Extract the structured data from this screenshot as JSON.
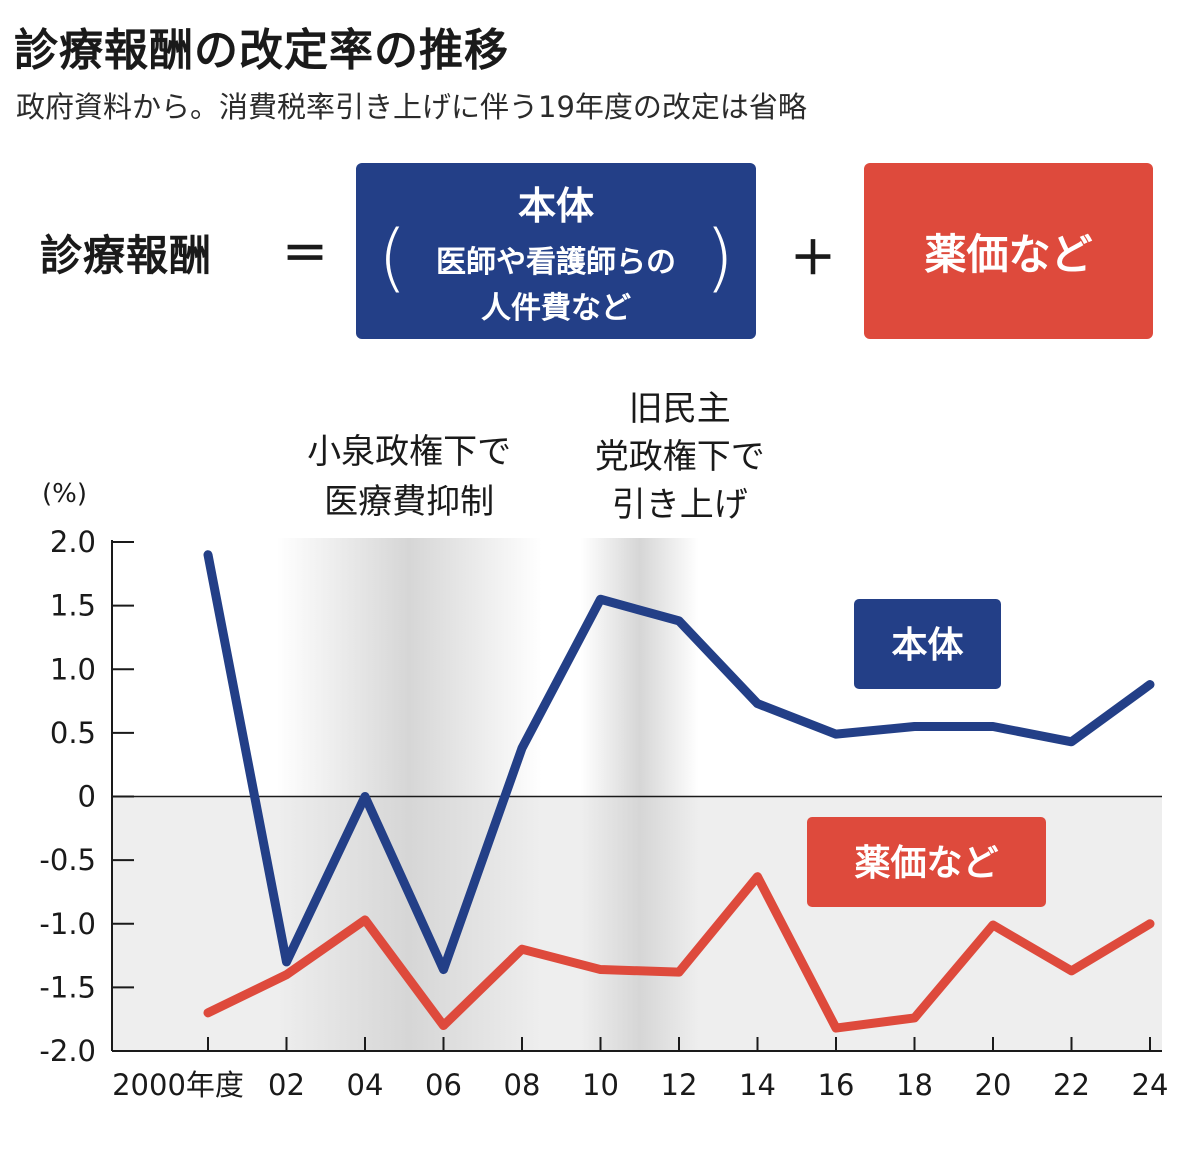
{
  "header": {
    "title": "診療報酬の改定率の推移",
    "subtitle": "政府資料から。消費税率引き上げに伴う19年度の改定は省略"
  },
  "formula": {
    "lhs": "診療報酬",
    "equals": "＝",
    "plus": "＋",
    "main_box": {
      "head": "本体",
      "line1": "医師や看護師らの",
      "line2": "人件費など",
      "paren_open": "(",
      "paren_close": ")"
    },
    "drug_box": "薬価など"
  },
  "colors": {
    "main": "#233f87",
    "drug": "#de4a3c",
    "negative_band": "#eeeeee",
    "period_shade": "#d6d6d6"
  },
  "chart_data": {
    "type": "line",
    "ylabel": "(%)",
    "ylim": [
      -2.0,
      2.0
    ],
    "x_tick_labels": [
      "2000年度",
      "02",
      "04",
      "06",
      "08",
      "10",
      "12",
      "14",
      "16",
      "18",
      "20",
      "22",
      "24"
    ],
    "y_tick_labels": [
      "2.0",
      "1.5",
      "1.0",
      "0.5",
      "0",
      "-0.5",
      "-1.0",
      "-1.5",
      "-2.0"
    ],
    "y_ticks": [
      2.0,
      1.5,
      1.0,
      0.5,
      0,
      -0.5,
      -1.0,
      -1.5,
      -2.0
    ],
    "x": [
      2000,
      2002,
      2004,
      2006,
      2008,
      2010,
      2012,
      2014,
      2016,
      2018,
      2020,
      2022,
      2024
    ],
    "series": [
      {
        "name": "本体",
        "values": [
          1.9,
          -1.3,
          0.0,
          -1.36,
          0.38,
          1.55,
          1.38,
          0.73,
          0.49,
          0.55,
          0.55,
          0.43,
          0.88
        ]
      },
      {
        "name": "薬価など",
        "values": [
          -1.7,
          -1.4,
          -0.97,
          -1.8,
          -1.2,
          -1.36,
          -1.38,
          -0.63,
          -1.82,
          -1.74,
          -1.01,
          -1.37,
          -1.0
        ]
      }
    ],
    "annotations": [
      {
        "lines": [
          "小泉政権下で",
          "医療費抑制"
        ],
        "x_range": [
          2001.75,
          2008.5
        ]
      },
      {
        "lines": [
          "旧民主",
          "党政権下で",
          "引き上げ"
        ],
        "x_range": [
          2009.5,
          2012.5
        ]
      }
    ],
    "legend_labels": [
      "本体",
      "薬価など"
    ]
  }
}
